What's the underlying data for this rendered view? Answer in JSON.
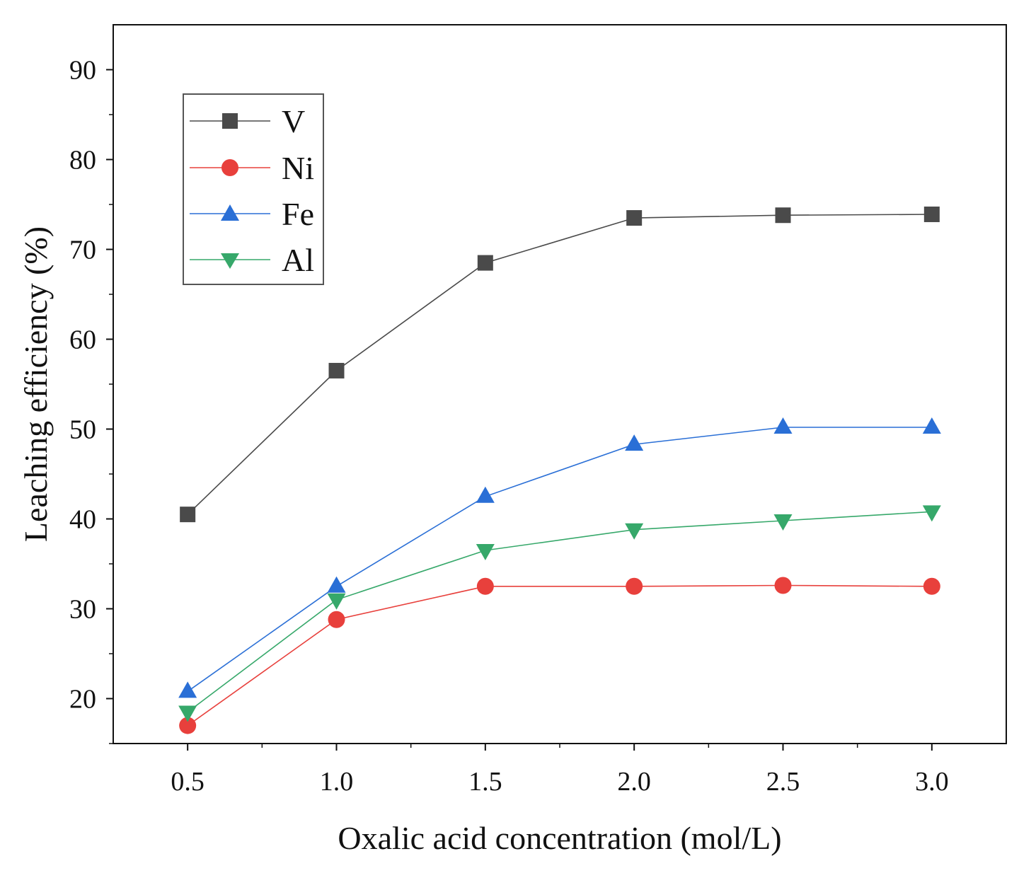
{
  "chart_data": {
    "type": "line",
    "title": "",
    "xlabel": "Oxalic acid concentration (mol/L)",
    "ylabel": "Leaching efficiency (%)",
    "xlim": [
      0.25,
      3.25
    ],
    "ylim": [
      15,
      95
    ],
    "x": [
      0.5,
      1.0,
      1.5,
      2.0,
      2.5,
      3.0
    ],
    "x_tick_labels": [
      "0.5",
      "1.0",
      "1.5",
      "2.0",
      "2.5",
      "3.0"
    ],
    "y_ticks": [
      20,
      30,
      40,
      50,
      60,
      70,
      80,
      90
    ],
    "y_tick_labels": [
      "20",
      "30",
      "40",
      "50",
      "60",
      "70",
      "80",
      "90"
    ],
    "legend_position": "top-left",
    "grid": false,
    "series": [
      {
        "name": "V",
        "marker": "square",
        "color": "#4a4a4a",
        "values": [
          40.5,
          56.5,
          68.5,
          73.5,
          73.8,
          73.9
        ]
      },
      {
        "name": "Ni",
        "marker": "circle",
        "color": "#e8403c",
        "values": [
          17.0,
          28.8,
          32.5,
          32.5,
          32.6,
          32.5
        ]
      },
      {
        "name": "Fe",
        "marker": "triangle-up",
        "color": "#2a6fd6",
        "values": [
          20.8,
          32.5,
          42.5,
          48.3,
          50.2,
          50.2
        ]
      },
      {
        "name": "Al",
        "marker": "triangle-down",
        "color": "#36a86a",
        "values": [
          18.5,
          31.0,
          36.5,
          38.8,
          39.8,
          40.8
        ]
      }
    ]
  }
}
